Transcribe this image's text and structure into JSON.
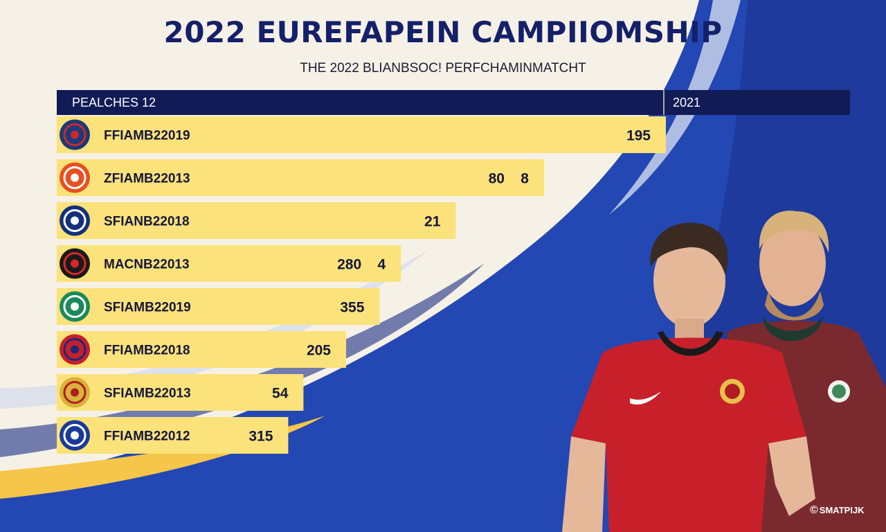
{
  "header": {
    "title": "2022 EUREFAPEIN CAMPIIOMSHIP",
    "subtitle": "THE 2022 BLIANBSOC! PERFCHAMINMATCHT"
  },
  "table_header": {
    "left": "PEALCHES 12",
    "right": "2021"
  },
  "watermark": {
    "symbol": "©",
    "text": "SMATPIJK"
  },
  "colors": {
    "bar": "#fbe27a",
    "header": "#111b55",
    "title": "#14206a",
    "background_blue": "#2347b3"
  },
  "chart_data": {
    "type": "bar",
    "orientation": "horizontal",
    "categories": [
      "FFIAMB22019",
      "ZFIAMB22013",
      "SFIANB22018",
      "MACNB22013",
      "SFIAMB22019",
      "FFIAMB22018",
      "SFIAMB22013",
      "FFIAMB22012"
    ],
    "value_labels": [
      "195",
      "80    8",
      "21",
      "280    4",
      "355",
      "205",
      "54",
      "315"
    ],
    "bar_length_fraction": [
      1.0,
      0.8,
      0.655,
      0.565,
      0.53,
      0.475,
      0.405,
      0.38
    ],
    "icons": [
      "club-crest-icon",
      "lion-crest-icon",
      "rooster-crest-icon",
      "red-devil-crest-icon",
      "green-crest-icon",
      "union-flag-icon",
      "devil-shield-crest-icon",
      "chelsea-lion-crest-icon"
    ]
  }
}
